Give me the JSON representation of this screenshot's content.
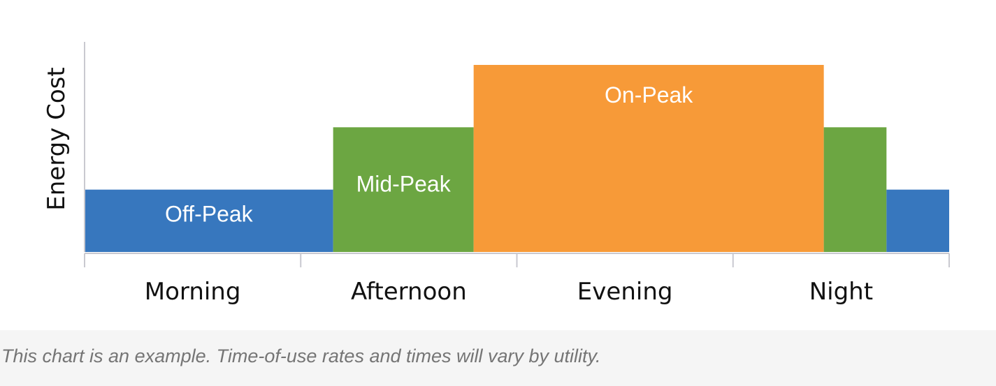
{
  "chart_data": {
    "type": "area",
    "title": "",
    "ylabel": "Energy Cost",
    "xlabel": "",
    "x_categories": [
      "Morning",
      "Afternoon",
      "Evening",
      "Night"
    ],
    "x_range": [
      0,
      4
    ],
    "ylim": [
      0,
      3
    ],
    "grid": false,
    "segments": [
      {
        "label": "Off-Peak",
        "tier": "off-peak",
        "x_start": 0.0,
        "x_end": 1.15,
        "level": 1
      },
      {
        "label": "Mid-Peak",
        "tier": "mid-peak",
        "x_start": 1.15,
        "x_end": 1.8,
        "level": 2
      },
      {
        "label": "On-Peak",
        "tier": "on-peak",
        "x_start": 1.8,
        "x_end": 3.42,
        "level": 3
      },
      {
        "label": "",
        "tier": "mid-peak",
        "x_start": 3.42,
        "x_end": 3.71,
        "level": 2
      },
      {
        "label": "",
        "tier": "off-peak",
        "x_start": 3.71,
        "x_end": 4.0,
        "level": 1
      }
    ],
    "colors": {
      "off-peak": "#3777be",
      "mid-peak": "#6ca642",
      "on-peak": "#f79a38",
      "axis": "#c9c9d0",
      "segment_label": "#ffffff",
      "axis_label": "#111111"
    }
  },
  "caption": {
    "text": "This chart is an example. Time-of-use rates and times will vary by utility."
  }
}
